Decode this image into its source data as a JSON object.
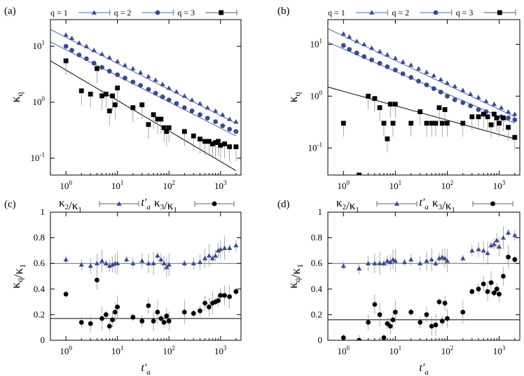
{
  "colors": {
    "blue": "#3b4a8c",
    "blue_line": "#4a68b8",
    "black": "#000000"
  },
  "chart_data": [
    {
      "panel": "(a)",
      "type": "scatter",
      "xscale": "log",
      "yscale": "log",
      "xlim": [
        0.5,
        2500
      ],
      "ylim": [
        0.05,
        30
      ],
      "xticks": [
        1,
        10,
        100,
        1000
      ],
      "xticklabels": [
        "10^0",
        "10^1",
        "10^2",
        "10^3"
      ],
      "yticks": [
        0.1,
        1,
        10
      ],
      "yticklabels": [
        "10^-1",
        "10^0",
        "10^1"
      ],
      "xlabel": "t'a",
      "ylabel": "κq",
      "legend": "top",
      "series": [
        {
          "name": "q = 1",
          "marker": "triangle",
          "color": "#3b4a8c",
          "x": [
            1,
            1.3,
            1.8,
            2.5,
            3.5,
            5,
            7,
            10,
            14,
            20,
            28,
            40,
            55,
            75,
            100,
            140,
            200,
            280,
            400,
            560,
            800,
            1100,
            1500,
            2000
          ],
          "y": [
            16,
            14,
            11.5,
            10,
            8.5,
            7.3,
            6.3,
            5.4,
            4.6,
            4,
            3.4,
            2.9,
            2.5,
            2.1,
            1.8,
            1.55,
            1.3,
            1.1,
            0.95,
            0.8,
            0.7,
            0.6,
            0.5,
            0.45
          ]
        },
        {
          "name": "q = 2",
          "marker": "circle",
          "color": "#3b4a8c",
          "x": [
            1,
            1.3,
            1.8,
            2.5,
            3.5,
            5,
            7,
            10,
            14,
            20,
            28,
            40,
            55,
            75,
            100,
            140,
            200,
            280,
            400,
            560,
            800,
            1100,
            1500,
            2000
          ],
          "y": [
            10,
            8.5,
            7,
            6,
            5,
            4.2,
            3.6,
            3.1,
            2.7,
            2.3,
            2,
            1.7,
            1.45,
            1.25,
            1.1,
            0.95,
            0.8,
            0.7,
            0.6,
            0.52,
            0.45,
            0.38,
            0.33,
            0.3
          ]
        },
        {
          "name": "q = 3",
          "marker": "square",
          "color": "#000000",
          "x": [
            1,
            2,
            3,
            4,
            5,
            6,
            7,
            8,
            9,
            10,
            20,
            30,
            40,
            50,
            60,
            70,
            80,
            90,
            100,
            200,
            300,
            400,
            500,
            600,
            700,
            800,
            900,
            1000,
            1200,
            1500,
            2000
          ],
          "y": [
            5.5,
            1.6,
            1.4,
            4,
            1.3,
            1.4,
            0.7,
            1.3,
            0.9,
            1.8,
            0.8,
            0.9,
            0.4,
            0.6,
            0.5,
            0.5,
            0.35,
            0.3,
            0.35,
            0.3,
            0.25,
            0.22,
            0.2,
            0.2,
            0.18,
            0.19,
            0.2,
            0.17,
            0.18,
            0.16,
            0.16
          ]
        }
      ],
      "fit_lines": [
        {
          "color": "#4a68b8",
          "x": [
            0.5,
            2000
          ],
          "y": [
            20,
            0.42
          ]
        },
        {
          "color": "#4a68b8",
          "x": [
            0.5,
            2000
          ],
          "y": [
            12,
            0.25
          ]
        },
        {
          "color": "#000000",
          "x": [
            0.5,
            2000
          ],
          "y": [
            5.5,
            0.06
          ]
        }
      ]
    },
    {
      "panel": "(b)",
      "type": "scatter",
      "xscale": "log",
      "yscale": "log",
      "xlim": [
        0.5,
        2500
      ],
      "ylim": [
        0.03,
        30
      ],
      "xticks": [
        1,
        10,
        100,
        1000
      ],
      "xticklabels": [
        "10^0",
        "10^1",
        "10^2",
        "10^3"
      ],
      "yticks": [
        0.1,
        1,
        10
      ],
      "yticklabels": [
        "10^-1",
        "10^0",
        "10^1"
      ],
      "xlabel": "t'a",
      "ylabel": "κq",
      "legend": "top",
      "series": [
        {
          "name": "q = 1",
          "marker": "triangle",
          "color": "#3b4a8c",
          "x": [
            1,
            1.3,
            1.8,
            2.5,
            3.5,
            5,
            7,
            10,
            14,
            20,
            28,
            40,
            55,
            75,
            100,
            140,
            200,
            280,
            400,
            560,
            800,
            1100,
            1500,
            2000
          ],
          "y": [
            16,
            14,
            11.5,
            10,
            8.5,
            7.3,
            6.3,
            5.4,
            4.6,
            4,
            3.4,
            2.9,
            2.5,
            2.1,
            1.8,
            1.55,
            1.3,
            1.1,
            0.95,
            0.8,
            0.7,
            0.6,
            0.5,
            0.45
          ]
        },
        {
          "name": "q = 2",
          "marker": "circle",
          "color": "#3b4a8c",
          "x": [
            1,
            1.3,
            1.8,
            2.5,
            3.5,
            5,
            7,
            10,
            14,
            20,
            28,
            40,
            55,
            75,
            100,
            140,
            200,
            280,
            400,
            560,
            800,
            1100,
            1500,
            2000
          ],
          "y": [
            9.5,
            8,
            6.8,
            5.8,
            5,
            4.3,
            3.7,
            3.2,
            2.7,
            2.3,
            1.95,
            1.65,
            1.4,
            1.2,
            1.0,
            0.85,
            0.75,
            0.65,
            0.55,
            0.5,
            0.45,
            0.4,
            0.38,
            0.35
          ]
        },
        {
          "name": "q = 3",
          "marker": "square",
          "color": "#000000",
          "x": [
            1,
            2,
            3,
            4,
            5,
            6,
            7,
            8,
            9,
            10,
            20,
            30,
            40,
            50,
            60,
            70,
            80,
            90,
            100,
            200,
            300,
            400,
            500,
            600,
            700,
            800,
            900,
            1000,
            1200,
            1500,
            2000
          ],
          "y": [
            0.3,
            0.03,
            1.0,
            0.9,
            0.6,
            0.3,
            0.15,
            0.7,
            0.3,
            0.7,
            0.3,
            0.5,
            0.3,
            0.3,
            0.3,
            0.6,
            0.3,
            0.55,
            0.3,
            0.3,
            0.4,
            0.4,
            0.45,
            0.4,
            0.28,
            0.45,
            0.38,
            0.3,
            0.38,
            0.25,
            0.16
          ]
        }
      ],
      "fit_lines": [
        {
          "color": "#4a68b8",
          "x": [
            0.5,
            2000
          ],
          "y": [
            20,
            0.4
          ]
        },
        {
          "color": "#4a68b8",
          "x": [
            0.5,
            2000
          ],
          "y": [
            11,
            0.3
          ]
        },
        {
          "color": "#000000",
          "x": [
            0.5,
            2000
          ],
          "y": [
            1.5,
            0.15
          ]
        }
      ]
    },
    {
      "panel": "(c)",
      "type": "scatter",
      "xscale": "log",
      "yscale": "linear",
      "xlim": [
        0.5,
        2500
      ],
      "ylim": [
        0,
        1
      ],
      "xticks": [
        1,
        10,
        100,
        1000
      ],
      "xticklabels": [
        "10^0",
        "10^1",
        "10^2",
        "10^3"
      ],
      "yticks": [
        0,
        0.2,
        0.4,
        0.6,
        0.8,
        1
      ],
      "yticklabels": [
        "0",
        "0.2",
        "0.4",
        "0.6",
        "0.8",
        "1"
      ],
      "xlabel": "t'a",
      "ylabel": "κq/κ1",
      "legend": "top",
      "series": [
        {
          "name": "κ2/κ1",
          "marker": "triangle",
          "color": "#3b4a8c",
          "x": [
            1,
            2,
            3,
            4,
            5,
            6,
            7,
            8,
            9,
            10,
            15,
            20,
            30,
            40,
            50,
            60,
            70,
            80,
            90,
            100,
            200,
            300,
            400,
            500,
            600,
            700,
            800,
            900,
            1000,
            1200,
            1500,
            2000
          ],
          "y": [
            0.63,
            0.59,
            0.58,
            0.6,
            0.62,
            0.6,
            0.58,
            0.59,
            0.6,
            0.6,
            0.63,
            0.6,
            0.62,
            0.6,
            0.6,
            0.66,
            0.63,
            0.6,
            0.57,
            0.59,
            0.6,
            0.6,
            0.61,
            0.64,
            0.66,
            0.64,
            0.66,
            0.7,
            0.71,
            0.72,
            0.72,
            0.74
          ]
        },
        {
          "name": "κ3/κ1",
          "marker": "circle",
          "color": "#000000",
          "x": [
            1,
            2,
            3,
            4,
            5,
            6,
            7,
            8,
            9,
            10,
            20,
            30,
            40,
            50,
            60,
            70,
            80,
            90,
            100,
            200,
            300,
            400,
            500,
            600,
            700,
            800,
            900,
            1000,
            1200,
            1500,
            2000
          ],
          "y": [
            0.36,
            0.14,
            0.13,
            0.47,
            0.17,
            0.2,
            0.11,
            0.16,
            0.22,
            0.26,
            0.18,
            0.15,
            0.27,
            0.15,
            0.22,
            0.17,
            0.14,
            0.19,
            0.15,
            0.22,
            0.21,
            0.23,
            0.29,
            0.26,
            0.29,
            0.3,
            0.31,
            0.35,
            0.35,
            0.34,
            0.38
          ]
        }
      ],
      "fit_lines": [
        {
          "color": "#4a68b8",
          "x": [
            0.5,
            2500
          ],
          "y": [
            0.6,
            0.6
          ]
        },
        {
          "color": "#000000",
          "x": [
            0.5,
            2500
          ],
          "y": [
            0.17,
            0.17
          ]
        }
      ]
    },
    {
      "panel": "(d)",
      "type": "scatter",
      "xscale": "log",
      "yscale": "linear",
      "xlim": [
        0.5,
        2500
      ],
      "ylim": [
        0,
        1
      ],
      "xticks": [
        1,
        10,
        100,
        1000
      ],
      "xticklabels": [
        "10^0",
        "10^1",
        "10^2",
        "10^3"
      ],
      "yticks": [
        0,
        0.2,
        0.4,
        0.6,
        0.8,
        1
      ],
      "yticklabels": [
        "0",
        "0.2",
        "0.4",
        "0.6",
        "0.8",
        "1"
      ],
      "xlabel": "t'a",
      "ylabel": "κq/κ1",
      "legend": "top",
      "series": [
        {
          "name": "κ2/κ1",
          "marker": "triangle",
          "color": "#3b4a8c",
          "x": [
            1,
            2,
            3,
            4,
            5,
            6,
            7,
            8,
            9,
            10,
            15,
            20,
            30,
            40,
            50,
            60,
            70,
            80,
            90,
            100,
            200,
            300,
            400,
            500,
            600,
            700,
            800,
            900,
            1000,
            1200,
            1500,
            2000
          ],
          "y": [
            0.58,
            0.56,
            0.6,
            0.6,
            0.6,
            0.6,
            0.62,
            0.61,
            0.63,
            0.62,
            0.61,
            0.63,
            0.6,
            0.62,
            0.63,
            0.6,
            0.64,
            0.65,
            0.64,
            0.62,
            0.64,
            0.7,
            0.71,
            0.7,
            0.68,
            0.74,
            0.75,
            0.78,
            0.73,
            0.8,
            0.84,
            0.82
          ]
        },
        {
          "name": "κ3/κ1",
          "marker": "circle",
          "color": "#000000",
          "x": [
            1,
            2,
            3,
            4,
            5,
            6,
            7,
            8,
            9,
            10,
            20,
            30,
            40,
            50,
            60,
            70,
            80,
            90,
            100,
            200,
            300,
            400,
            500,
            600,
            700,
            800,
            900,
            1000,
            1200,
            1500,
            2000
          ],
          "y": [
            0.02,
            0.0,
            0.14,
            0.28,
            0.2,
            0.02,
            0.13,
            0.11,
            0.16,
            0.22,
            0.22,
            0.14,
            0.2,
            0.11,
            0.12,
            0.3,
            0.15,
            0.29,
            0.17,
            0.22,
            0.38,
            0.4,
            0.44,
            0.38,
            0.45,
            0.37,
            0.4,
            0.36,
            0.5,
            0.65,
            0.63
          ]
        }
      ],
      "fit_lines": [
        {
          "color": "#4a68b8",
          "x": [
            0.5,
            2500
          ],
          "y": [
            0.6,
            0.6
          ]
        },
        {
          "color": "#000000",
          "x": [
            0.5,
            2500
          ],
          "y": [
            0.16,
            0.16
          ]
        }
      ]
    }
  ]
}
